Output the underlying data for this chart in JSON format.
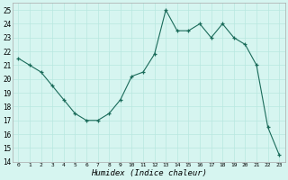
{
  "x": [
    0,
    1,
    2,
    3,
    4,
    5,
    6,
    7,
    8,
    9,
    10,
    11,
    12,
    13,
    14,
    15,
    16,
    17,
    18,
    19,
    20,
    21,
    22,
    23
  ],
  "y": [
    21.5,
    21.0,
    20.5,
    19.5,
    18.5,
    17.5,
    17.0,
    17.0,
    17.5,
    18.5,
    20.2,
    20.5,
    21.8,
    25.0,
    23.5,
    23.5,
    24.0,
    23.0,
    24.0,
    23.0,
    22.5,
    21.0,
    16.5,
    14.5
  ],
  "xlabel": "Humidex (Indice chaleur)",
  "ylim": [
    14,
    25.5
  ],
  "yticks": [
    14,
    15,
    16,
    17,
    18,
    19,
    20,
    21,
    22,
    23,
    24,
    25
  ],
  "xticks": [
    0,
    1,
    2,
    3,
    4,
    5,
    6,
    7,
    8,
    9,
    10,
    11,
    12,
    13,
    14,
    15,
    16,
    17,
    18,
    19,
    20,
    21,
    22,
    23
  ],
  "line_color": "#1a6b5a",
  "bg_color": "#d6f5f0",
  "grid_color": "#b8e8e0"
}
